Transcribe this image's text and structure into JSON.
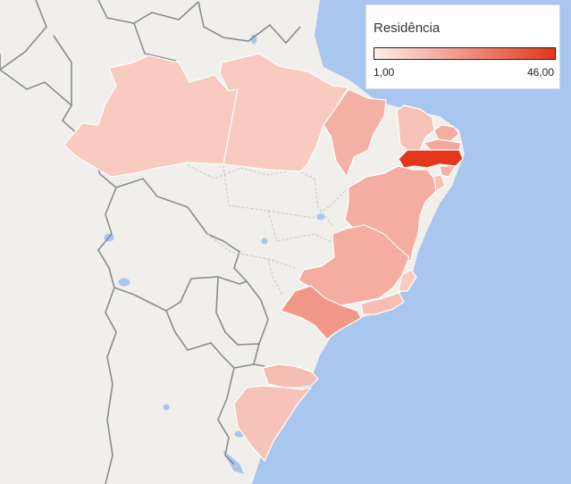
{
  "legend": {
    "title": "Residência",
    "min_label": "1,00",
    "max_label": "46,00",
    "min_value": 1,
    "max_value": 46,
    "color_low": "#fdeee9",
    "color_high": "#e3361b"
  },
  "colors": {
    "ocean": "#a9c6ef",
    "land": "#f0efec",
    "country_border": "#8b8b8b",
    "state_border": "#c9c7c2",
    "region_border": "#ffffff",
    "water": "#a9c6ef"
  },
  "regions": [
    {
      "name": "Amazonas",
      "value": 4
    },
    {
      "name": "Pará",
      "value": 4
    },
    {
      "name": "Maranhão",
      "value": 8
    },
    {
      "name": "Ceará",
      "value": 5
    },
    {
      "name": "Rio Grande do Norte",
      "value": 9
    },
    {
      "name": "Paraíba",
      "value": 10
    },
    {
      "name": "Pernambuco",
      "value": 46
    },
    {
      "name": "Alagoas",
      "value": 8
    },
    {
      "name": "Sergipe",
      "value": 6
    },
    {
      "name": "Bahia",
      "value": 9
    },
    {
      "name": "Minas Gerais",
      "value": 9
    },
    {
      "name": "Espírito Santo",
      "value": 4
    },
    {
      "name": "Rio de Janeiro",
      "value": 6
    },
    {
      "name": "São Paulo",
      "value": 14
    },
    {
      "name": "Paraná",
      "value": 6
    },
    {
      "name": "Rio Grande do Sul",
      "value": 5
    }
  ]
}
